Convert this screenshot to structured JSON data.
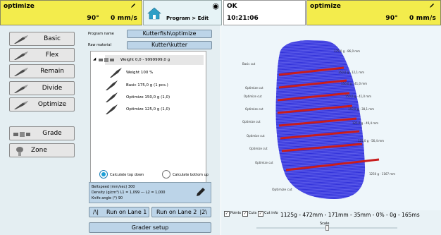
{
  "left_status": {
    "program": "optimize",
    "angle": "90°",
    "speed": "0 mm/s"
  },
  "program_box": {
    "path": "Program > Edit"
  },
  "status_box": {
    "state": "OK",
    "time": "10:21:06"
  },
  "right_status": {
    "program": "optimize",
    "angle": "90°",
    "speed": "0 mm/s"
  },
  "sidebar": {
    "items": [
      {
        "label": "Basic"
      },
      {
        "label": "Flex"
      },
      {
        "label": "Remain"
      },
      {
        "label": "Divide"
      },
      {
        "label": "Optimize"
      },
      {
        "label": "Grade"
      },
      {
        "label": "Zone"
      }
    ]
  },
  "program": {
    "name_label": "Program name",
    "name_value": "Kutterfish\\optimize",
    "raw_label": "Raw material",
    "raw_value": "Kutter\\kutter"
  },
  "tree": {
    "items": [
      {
        "label": "Weight 0,0 - 9999999,0 g"
      },
      {
        "label": "Weight 100 %"
      },
      {
        "label": "Basic 175,0 g (1 pcs.)"
      },
      {
        "label": "Optimize 150,0 g (1,0)"
      },
      {
        "label": "Optimize 125,0 g (1,0)"
      }
    ]
  },
  "calc": {
    "top_down": "Calculate top down",
    "bottom_up": "Calculate bottom up",
    "selected": "top_down"
  },
  "info": {
    "beltspeed": "Beltspeed (mm/sec) 300",
    "density": "Density (g/cm³) L1 = 1,099 --- L2 = 1,000",
    "knife": "Knife angle (°) 90"
  },
  "buttons": {
    "lane1_icon": "/\\|",
    "lane1": "Run on Lane 1",
    "lane2": "Run on Lane 2",
    "lane2_icon": "|2\\",
    "grader": "Grader setup"
  },
  "view": {
    "cut_labels": [
      "Basic cut",
      "Optimize cut",
      "Optimize cut",
      "Optimize cut",
      "Optimize cut",
      "Optimize cut",
      "Optimize cut",
      "Optimize cut"
    ],
    "right_labels": [
      "175,0 g · 86,0 mm",
      "150,0 g · 12,1 mm",
      "150,0 g · 41,0 mm",
      "150,0 g · 41,0 mm",
      "150,0 g · 38,1 mm",
      "125,0 g · 49,4 mm",
      "125,0 g · 56,4 mm",
      "1250 g · 1167 mm"
    ],
    "bottom_label": "Optimize cut"
  },
  "controls": {
    "points": "Points",
    "cuts": "Cuts",
    "cutinfo": "Cut info",
    "stats": "1125g - 472mm - 171mm - 35mm - 0% - 0g - 165ms",
    "scale": "Scale",
    "scale_value": 0.5
  },
  "colors": {
    "status_bar": "#f3ec4c",
    "cut_line": "#c81d1d",
    "mesh": "#2a2ad8",
    "selected_radio": "#1b9fd6"
  }
}
